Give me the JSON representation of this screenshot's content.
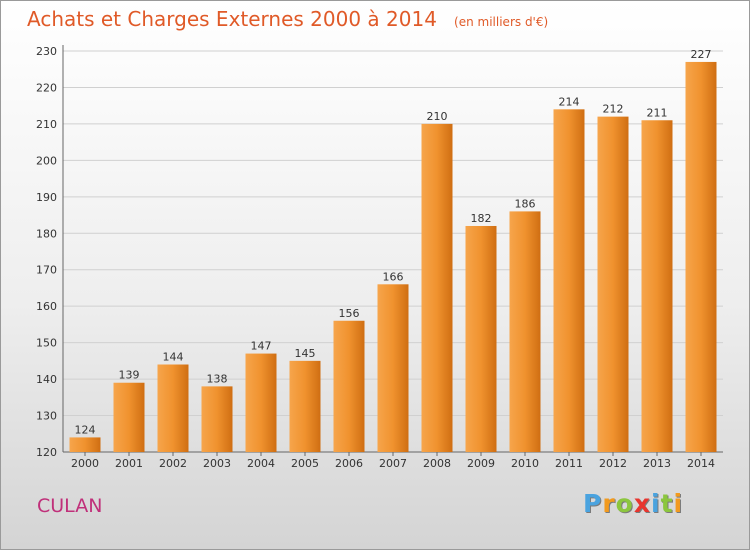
{
  "chart_data": {
    "type": "bar",
    "title": "Achats et Charges Externes 2000 à 2014",
    "subtitle": "(en milliers d'€)",
    "categories": [
      "2000",
      "2001",
      "2002",
      "2003",
      "2004",
      "2005",
      "2006",
      "2007",
      "2008",
      "2009",
      "2010",
      "2011",
      "2012",
      "2013",
      "2014"
    ],
    "values": [
      124,
      139,
      144,
      138,
      147,
      145,
      156,
      166,
      210,
      182,
      186,
      214,
      212,
      211,
      227
    ],
    "yticks": [
      120,
      130,
      140,
      150,
      160,
      170,
      180,
      190,
      200,
      210,
      220,
      230
    ],
    "ylim": [
      120,
      230
    ],
    "grid": true,
    "bar_color": "#f0922e"
  },
  "place": "CULAN",
  "logo": {
    "letters": [
      "P",
      "r",
      "o",
      "x",
      "i",
      "t",
      "i"
    ],
    "colors": [
      "#4aa3df",
      "#f29a1e",
      "#8cc63e",
      "#e8352e",
      "#4aa3df",
      "#8cc63e",
      "#f29a1e"
    ]
  }
}
